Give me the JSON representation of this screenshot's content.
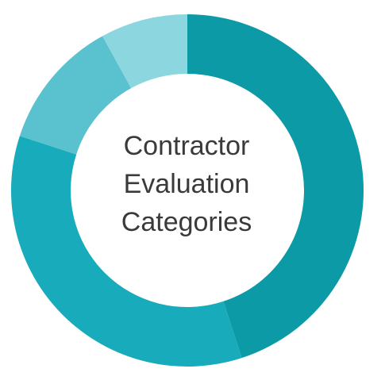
{
  "chart_data": {
    "type": "donut",
    "title": "Contractor Evaluation Categories",
    "categories": [
      null,
      null,
      null,
      null
    ],
    "values": [
      45,
      35,
      12,
      8
    ],
    "colors": [
      "#0b9aa6",
      "#18abbb",
      "#5ac2cf",
      "#8bd6df"
    ]
  }
}
